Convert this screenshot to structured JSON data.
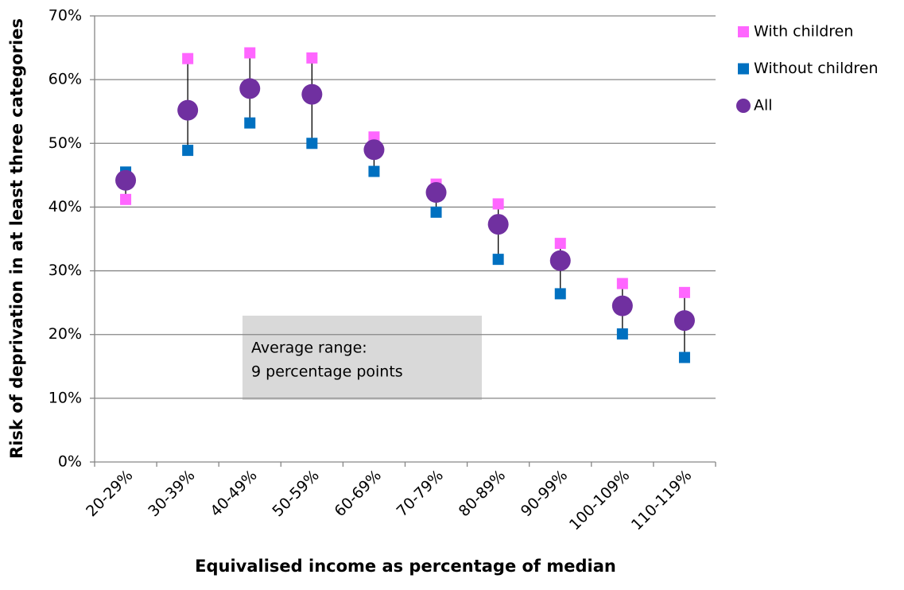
{
  "chart_data": {
    "type": "scatter",
    "x_title": "Equivalised income as percentage of median",
    "y_title": "Risk of deprivation in at least three categories",
    "categories": [
      "20-29%",
      "30-39%",
      "40-49%",
      "50-59%",
      "60-69%",
      "70-79%",
      "80-89%",
      "90-99%",
      "100-109%",
      "110-119%"
    ],
    "series": [
      {
        "name": "With children",
        "color": "#ff66ff",
        "marker": "square",
        "values": [
          41.2,
          63.3,
          64.2,
          63.4,
          51.0,
          43.6,
          40.5,
          34.3,
          28.0,
          26.6
        ]
      },
      {
        "name": "Without children",
        "color": "#0070c0",
        "marker": "square",
        "values": [
          45.5,
          48.9,
          53.2,
          50.0,
          45.6,
          39.2,
          31.8,
          26.4,
          20.1,
          16.4
        ]
      },
      {
        "name": "All",
        "color": "#7030a0",
        "marker": "circle",
        "values": [
          44.2,
          55.2,
          58.6,
          57.7,
          49.0,
          42.3,
          37.3,
          31.6,
          24.5,
          22.2
        ]
      }
    ],
    "ylim": [
      0,
      70
    ],
    "yticks": [
      {
        "value": 0,
        "label": "0%"
      },
      {
        "value": 10,
        "label": "10%"
      },
      {
        "value": 20,
        "label": "20%"
      },
      {
        "value": 30,
        "label": "30%"
      },
      {
        "value": 40,
        "label": "40%"
      },
      {
        "value": 50,
        "label": "50%"
      },
      {
        "value": 60,
        "label": "60%"
      },
      {
        "value": 70,
        "label": "70%"
      }
    ],
    "grid": true,
    "high_low_lines": true,
    "legend": "right",
    "annotation": [
      "Average range:",
      "9 percentage points"
    ]
  }
}
